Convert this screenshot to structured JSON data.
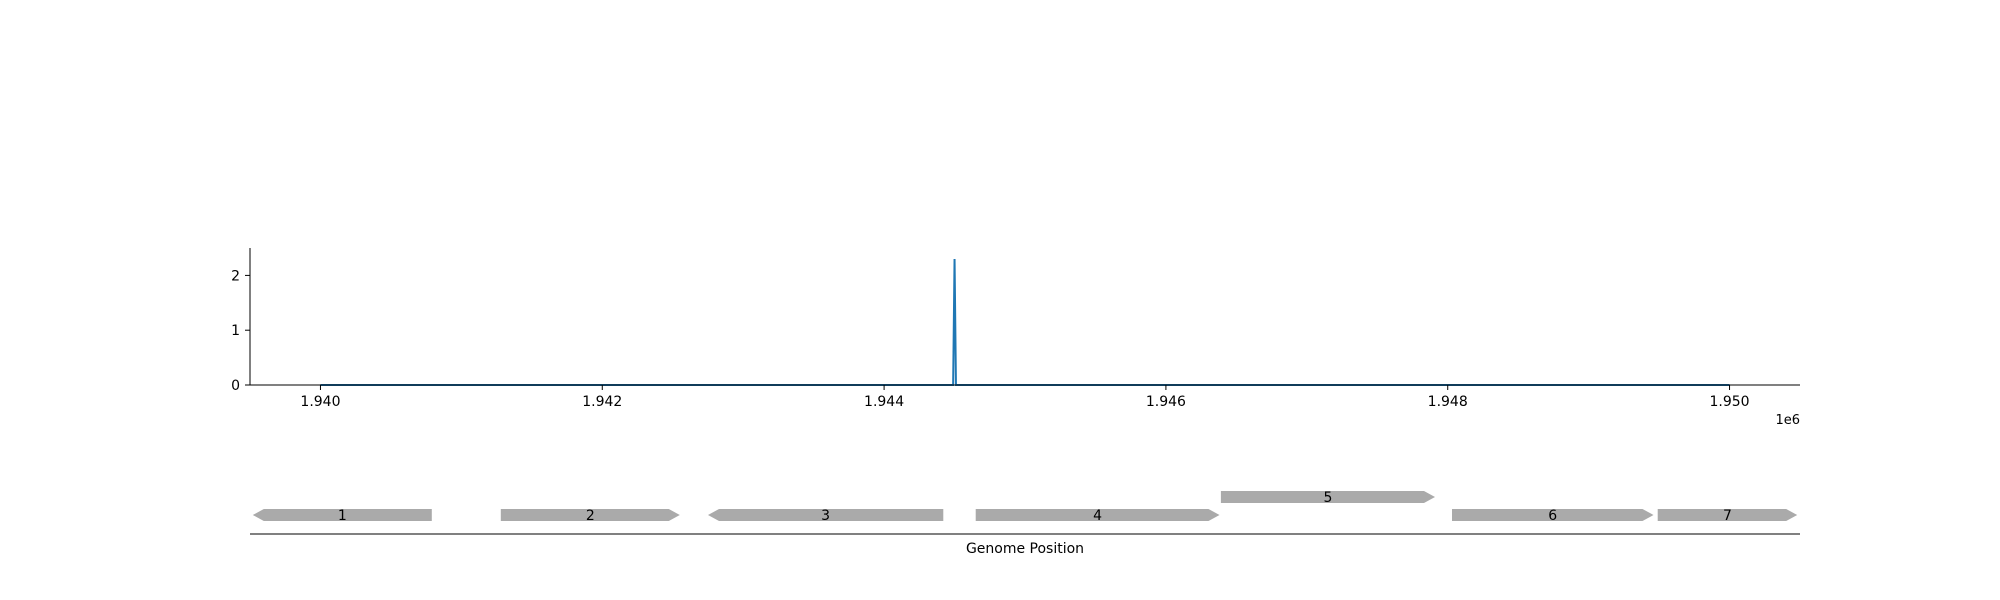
{
  "chart_data": {
    "type": "line",
    "title": "",
    "xlabel": "",
    "ylabel": "",
    "x_offset_label": "1e6",
    "xlim": [
      1939500,
      1950500
    ],
    "ylim": [
      0,
      2.5
    ],
    "grid": false,
    "x_ticks": [
      1940000,
      1942000,
      1944000,
      1946000,
      1948000,
      1950000
    ],
    "x_tick_labels": [
      "1.940",
      "1.942",
      "1.944",
      "1.946",
      "1.948",
      "1.950"
    ],
    "y_ticks": [
      0,
      1,
      2
    ],
    "y_tick_labels": [
      "0",
      "1",
      "2"
    ],
    "series": [
      {
        "color": "#1f77b4",
        "x": [
          1940000,
          1944490,
          1944500,
          1944510,
          1950000
        ],
        "y": [
          0,
          0,
          2.3,
          0,
          0
        ]
      }
    ]
  },
  "gene_track": {
    "xlabel": "Genome Position",
    "gene_color": "#aaaaaa",
    "genes": [
      {
        "label": "1",
        "start": 1939520,
        "end": 1940790,
        "strand": "-",
        "row": 0
      },
      {
        "label": "2",
        "start": 1941280,
        "end": 1942550,
        "strand": "+",
        "row": 0
      },
      {
        "label": "3",
        "start": 1942750,
        "end": 1944420,
        "strand": "-",
        "row": 0
      },
      {
        "label": "4",
        "start": 1944650,
        "end": 1946380,
        "strand": "+",
        "row": 0
      },
      {
        "label": "5",
        "start": 1946390,
        "end": 1947910,
        "strand": "+",
        "row": 1
      },
      {
        "label": "6",
        "start": 1948030,
        "end": 1949460,
        "strand": "+",
        "row": 0
      },
      {
        "label": "7",
        "start": 1949490,
        "end": 1950480,
        "strand": "+",
        "row": 0
      }
    ]
  }
}
